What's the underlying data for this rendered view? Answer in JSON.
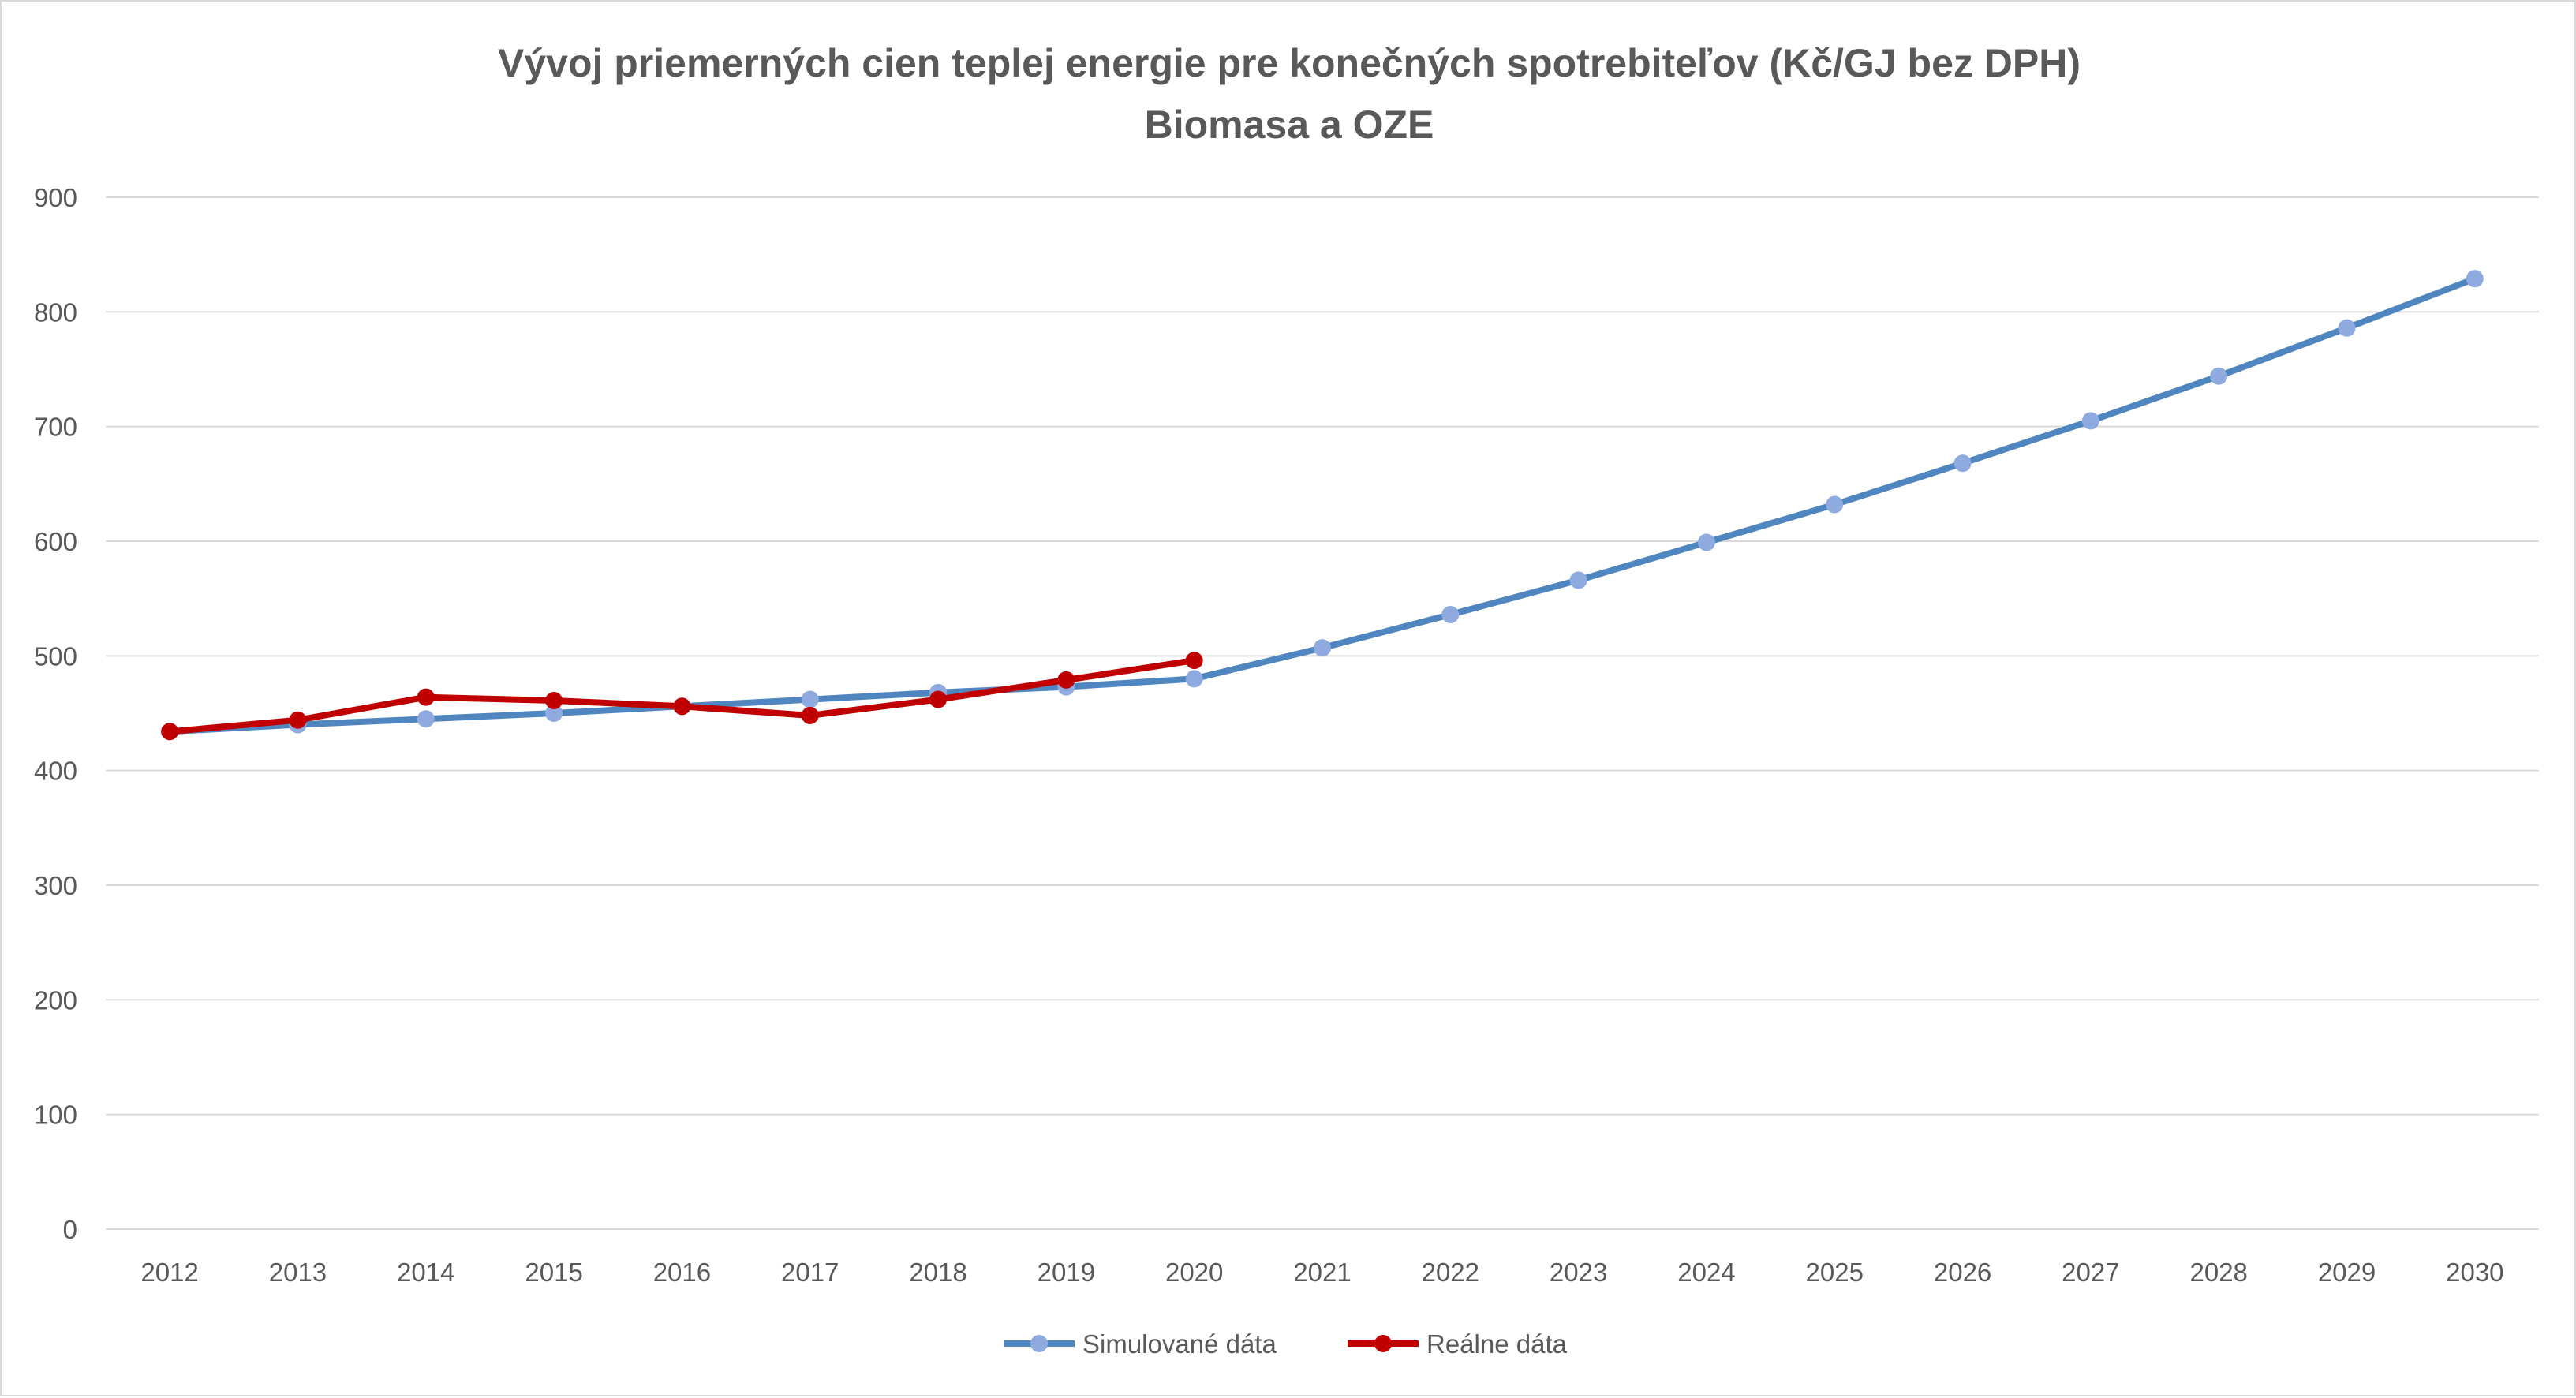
{
  "chart_data": {
    "type": "line",
    "title": "Vývoj priemerných cien teplej energie pre konečných spotrebiteľov (Kč/GJ bez DPH)",
    "subtitle": "Biomasa a OZE",
    "xlabel": "",
    "ylabel": "",
    "ylim": [
      0,
      900
    ],
    "yticks": [
      "0",
      "100",
      "200",
      "300",
      "400",
      "500",
      "600",
      "700",
      "800",
      "900"
    ],
    "grid": true,
    "legend_position": "bottom",
    "categories": [
      "2012",
      "2013",
      "2014",
      "2015",
      "2016",
      "2017",
      "2018",
      "2019",
      "2020",
      "2021",
      "2022",
      "2023",
      "2024",
      "2025",
      "2026",
      "2027",
      "2028",
      "2029",
      "2030"
    ],
    "series": [
      {
        "name": "Simulované dáta",
        "line_color": "#4f86c0",
        "marker_color": "#8eaadf",
        "values": [
          434,
          440,
          445,
          450,
          456,
          462,
          468,
          473,
          480,
          507,
          536,
          566,
          599,
          632,
          668,
          705,
          744,
          786,
          829
        ]
      },
      {
        "name": "Reálne dáta",
        "line_color": "#c00000",
        "marker_color": "#c00000",
        "values": [
          434,
          444,
          464,
          461,
          456,
          448,
          462,
          479,
          496,
          null,
          null,
          null,
          null,
          null,
          null,
          null,
          null,
          null,
          null
        ]
      }
    ]
  }
}
